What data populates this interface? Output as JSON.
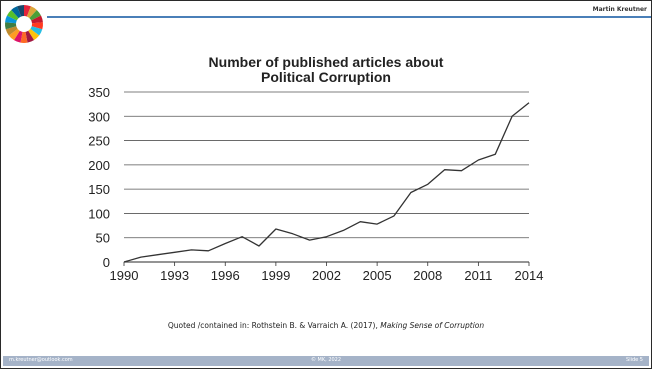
{
  "header": {
    "author": "Martin Kreutner"
  },
  "caption": {
    "prefix": "Quoted /contained in: Rothstein B. & Varraich A. (2017), ",
    "book_title": "Making Sense of Corruption"
  },
  "footer": {
    "email": "m.kreutner@outlook.com",
    "copyright": "© MK, 2022",
    "slide": "Slide 5"
  },
  "chart_data": {
    "type": "line",
    "title_lines": [
      "Number of published articles about",
      "Political Corruption"
    ],
    "xlabel": "",
    "ylabel": "",
    "xlim": [
      1990,
      2014
    ],
    "ylim": [
      0,
      350
    ],
    "xticks": [
      1990,
      1993,
      1996,
      1999,
      2002,
      2005,
      2008,
      2011,
      2014
    ],
    "yticks": [
      0,
      50,
      100,
      150,
      200,
      250,
      300,
      350
    ],
    "grid": true,
    "colors": {
      "line": "#333333",
      "grid": "#555555"
    },
    "series": [
      {
        "x": [
          1990,
          1991,
          1992,
          1993,
          1994,
          1995,
          1996,
          1997,
          1998,
          1999,
          2000,
          2001,
          2002,
          2003,
          2004,
          2005,
          2006,
          2007,
          2008,
          2009,
          2010,
          2011,
          2012,
          2013,
          2014
        ],
        "values": [
          0,
          10,
          15,
          20,
          25,
          23,
          38,
          52,
          33,
          68,
          58,
          45,
          52,
          65,
          83,
          78,
          95,
          143,
          160,
          190,
          188,
          210,
          222,
          300,
          328
        ]
      }
    ]
  }
}
